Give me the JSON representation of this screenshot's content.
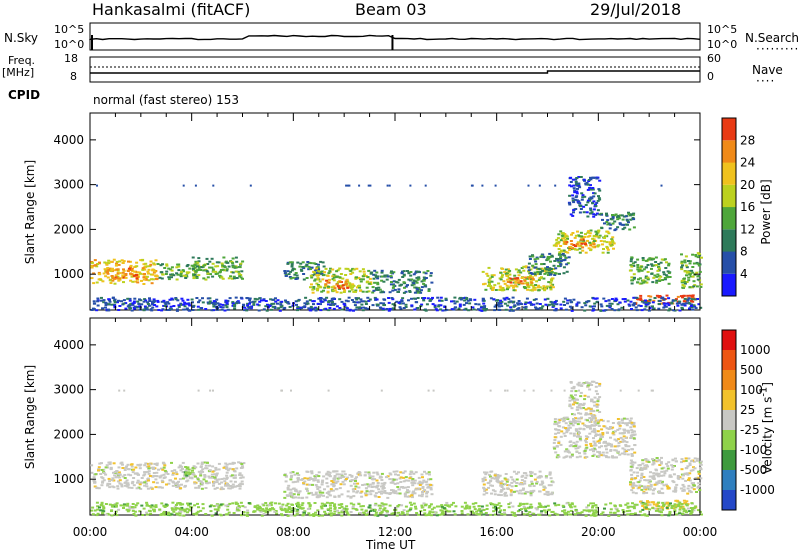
{
  "header": {
    "station": "Hankasalmi (fitACF)",
    "beam": "Beam 03",
    "date": "29/Jul/2018"
  },
  "aux_panels": {
    "nsky_label": "N.Sky",
    "nsky_ticks": [
      "10^5",
      "10^0"
    ],
    "nsearch_label": "N.Search",
    "nsearch_ticks": [
      "10^5",
      "10^0"
    ],
    "freq_label_1": "Freq.",
    "freq_label_2": "[MHz]",
    "freq_ticks": [
      "18",
      "8"
    ],
    "nave_label": "Nave",
    "nave_ticks": [
      "60",
      "0"
    ],
    "cpid_label": "CPID",
    "cpid_text": "normal (fast stereo) 153"
  },
  "chart_data": [
    {
      "type": "heatmap",
      "name": "power",
      "ylabel": "Slant Range [km]",
      "yticks": [
        1000,
        2000,
        3000,
        4000
      ],
      "ylim": [
        200,
        4600
      ],
      "xlim": [
        0,
        24
      ],
      "colorbar_label": "Power [dB]",
      "colorbar_ticks": [
        "4",
        "8",
        "12",
        "16",
        "20",
        "24",
        "28"
      ],
      "colorbar_colors": [
        "#1a1aff",
        "#264fa8",
        "#2e7a5a",
        "#4ea63a",
        "#bcd11f",
        "#f0c21e",
        "#f08a18",
        "#e83a14"
      ],
      "regions": [
        {
          "t0": 0.0,
          "t1": 2.6,
          "r0": 800,
          "r1": 1350,
          "level": 5
        },
        {
          "t0": 0.6,
          "t1": 1.8,
          "r0": 900,
          "r1": 1150,
          "level": 6
        },
        {
          "t0": 2.6,
          "t1": 4.2,
          "r0": 900,
          "r1": 1250,
          "level": 3
        },
        {
          "t0": 4.0,
          "t1": 6.0,
          "r0": 900,
          "r1": 1400,
          "level": 3
        },
        {
          "t0": 7.6,
          "t1": 9.2,
          "r0": 900,
          "r1": 1300,
          "level": 2
        },
        {
          "t0": 8.6,
          "t1": 11.0,
          "r0": 600,
          "r1": 1150,
          "level": 4
        },
        {
          "t0": 9.2,
          "t1": 10.2,
          "r0": 700,
          "r1": 900,
          "level": 6
        },
        {
          "t0": 11.0,
          "t1": 13.4,
          "r0": 600,
          "r1": 1100,
          "level": 2
        },
        {
          "t0": 15.4,
          "t1": 18.2,
          "r0": 650,
          "r1": 1200,
          "level": 4
        },
        {
          "t0": 16.2,
          "t1": 17.4,
          "r0": 750,
          "r1": 950,
          "level": 6
        },
        {
          "t0": 17.2,
          "t1": 18.8,
          "r0": 1000,
          "r1": 1500,
          "level": 2
        },
        {
          "t0": 18.2,
          "t1": 20.6,
          "r0": 1500,
          "r1": 2000,
          "level": 4
        },
        {
          "t0": 18.6,
          "t1": 19.8,
          "r0": 1600,
          "r1": 1800,
          "level": 6
        },
        {
          "t0": 20.0,
          "t1": 21.4,
          "r0": 2000,
          "r1": 2400,
          "level": 2
        },
        {
          "t0": 18.8,
          "t1": 20.0,
          "r0": 2300,
          "r1": 3200,
          "level": 1
        },
        {
          "t0": 21.2,
          "t1": 22.8,
          "r0": 800,
          "r1": 1400,
          "level": 3
        },
        {
          "t0": 21.4,
          "t1": 23.8,
          "r0": 350,
          "r1": 550,
          "level": 7
        },
        {
          "t0": 23.2,
          "t1": 24.0,
          "r0": 700,
          "r1": 1500,
          "level": 3
        },
        {
          "t0": 0.0,
          "t1": 24.0,
          "r0": 200,
          "r1": 500,
          "level": 1
        }
      ]
    },
    {
      "type": "heatmap",
      "name": "velocity",
      "ylabel": "Slant Range [km]",
      "xlabel": "Time UT",
      "yticks": [
        1000,
        2000,
        3000,
        4000
      ],
      "ylim": [
        200,
        4600
      ],
      "xlim": [
        0,
        24
      ],
      "xticks": [
        "00:00",
        "04:00",
        "08:00",
        "12:00",
        "16:00",
        "20:00",
        "00:00"
      ],
      "colorbar_label": "Velocity [m s^-1]",
      "colorbar_ticks": [
        "1000",
        "500",
        "100",
        "25",
        "-25",
        "-100",
        "-500",
        "-1000"
      ],
      "colorbar_colors": [
        "#2448c8",
        "#2f7fbf",
        "#3e9a3e",
        "#8fd24a",
        "#c8c8c4",
        "#f2c22c",
        "#f08a18",
        "#ee5512",
        "#e01010"
      ],
      "regions": [
        {
          "t0": 0.0,
          "t1": 6.0,
          "r0": 800,
          "r1": 1400,
          "level": 4
        },
        {
          "t0": 7.6,
          "t1": 13.4,
          "r0": 600,
          "r1": 1200,
          "level": 4
        },
        {
          "t0": 15.4,
          "t1": 18.2,
          "r0": 650,
          "r1": 1200,
          "level": 4
        },
        {
          "t0": 18.2,
          "t1": 21.4,
          "r0": 1500,
          "r1": 2400,
          "level": 4
        },
        {
          "t0": 18.8,
          "t1": 20.0,
          "r0": 2300,
          "r1": 3200,
          "level": 4
        },
        {
          "t0": 21.2,
          "t1": 24.0,
          "r0": 700,
          "r1": 1500,
          "level": 4
        },
        {
          "t0": 21.4,
          "t1": 23.8,
          "r0": 350,
          "r1": 550,
          "level": 5
        },
        {
          "t0": 3.6,
          "t1": 4.2,
          "r0": 1000,
          "r1": 1300,
          "level": 3
        },
        {
          "t0": 0.0,
          "t1": 24.0,
          "r0": 200,
          "r1": 500,
          "level": 3
        }
      ]
    }
  ]
}
